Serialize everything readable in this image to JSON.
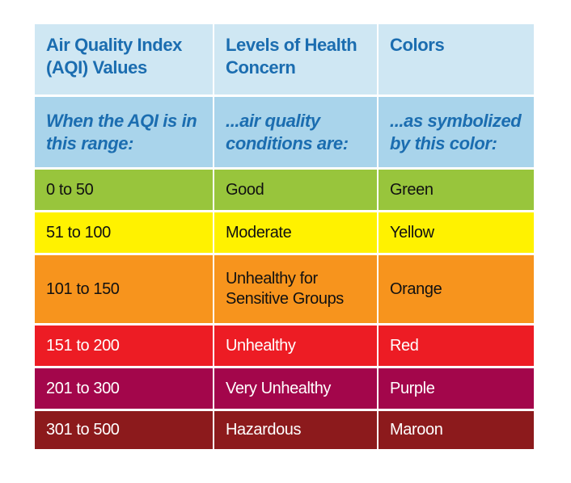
{
  "table": {
    "header": [
      "Air Quality Index (AQI) Values",
      "Levels of Health Concern",
      "Colors"
    ],
    "subheader": [
      "When the AQI is in this range:",
      "...air quality conditions are:",
      "...as symbolized by this color:"
    ],
    "rows": [
      [
        "0 to 50",
        "Good",
        "Green"
      ],
      [
        "51 to 100",
        "Moderate",
        "Yellow"
      ],
      [
        "101 to 150",
        "Unhealthy for Sensitive Groups",
        "Orange"
      ],
      [
        "151 to 200",
        "Unhealthy",
        "Red"
      ],
      [
        "201 to 300",
        "Very Unhealthy",
        "Purple"
      ],
      [
        "301 to 500",
        "Hazardous",
        "Maroon"
      ]
    ]
  }
}
